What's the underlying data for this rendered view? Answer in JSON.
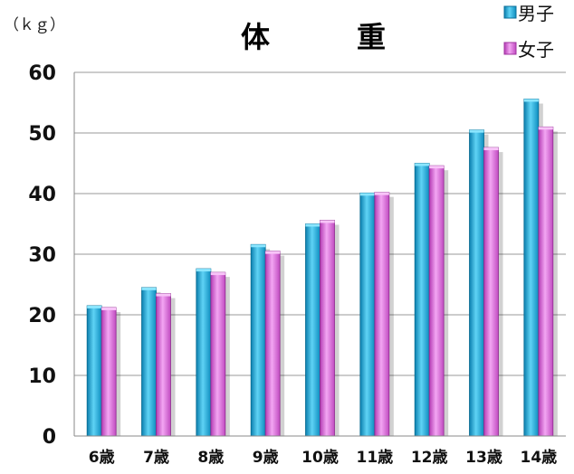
{
  "chart_data": {
    "type": "bar",
    "title": "体　　　重",
    "unit_label": "（ｋｇ）",
    "xlabel": "",
    "ylabel": "",
    "categories": [
      "6歳",
      "7歳",
      "8歳",
      "9歳",
      "10歳",
      "11歳",
      "12歳",
      "13歳",
      "14歳"
    ],
    "series": [
      {
        "name": "男子",
        "color": "#1CA6D4",
        "values": [
          21.5,
          24.5,
          27.6,
          31.6,
          35.0,
          40.1,
          45.0,
          50.5,
          55.6
        ]
      },
      {
        "name": "女子",
        "color": "#D85AD8",
        "values": [
          21.2,
          23.5,
          27.0,
          30.5,
          35.6,
          40.2,
          44.6,
          47.6,
          51.0
        ]
      }
    ],
    "ylim": [
      0,
      60
    ],
    "yticks": [
      0,
      10,
      20,
      30,
      40,
      50,
      60
    ],
    "grid": true,
    "legend": "top-right"
  }
}
